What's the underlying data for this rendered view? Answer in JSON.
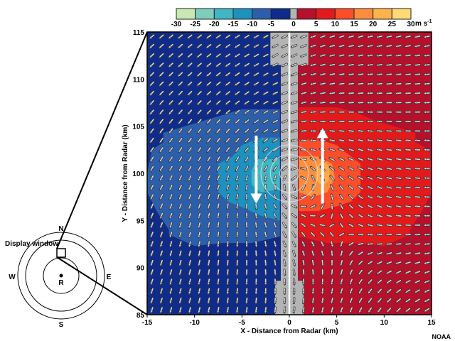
{
  "chart_data": {
    "type": "heatmap",
    "xlabel": "X - Distance from Radar (km)",
    "ylabel": "Y - Distance from Radar (km)",
    "xlim": [
      -15,
      15
    ],
    "ylim": [
      85,
      115
    ],
    "xticks": [
      "-15",
      "-10",
      "-5",
      "0",
      "5",
      "10",
      "15"
    ],
    "yticks": [
      "85",
      "90",
      "95",
      "100",
      "105",
      "110",
      "115"
    ],
    "colorbar": {
      "unit": "m s",
      "unit_exp": "-1",
      "ticks": [
        "-30",
        "-25",
        "-20",
        "-15",
        "-10",
        "-5",
        "0",
        "5",
        "10",
        "15",
        "20",
        "25",
        "30"
      ],
      "bins": [
        {
          "range": [
            -30,
            -25
          ],
          "color": "#c7e9b4"
        },
        {
          "range": [
            -25,
            -20
          ],
          "color": "#7fcdbb"
        },
        {
          "range": [
            -20,
            -15
          ],
          "color": "#41b6c4"
        },
        {
          "range": [
            -15,
            -10
          ],
          "color": "#1d91c0"
        },
        {
          "range": [
            -10,
            -5
          ],
          "color": "#2c5fab"
        },
        {
          "range": [
            -5,
            0
          ],
          "color": "#102c8a"
        },
        {
          "range": [
            0,
            0
          ],
          "color": "#b4b4b4"
        },
        {
          "range": [
            0,
            5
          ],
          "color": "#b5102c"
        },
        {
          "range": [
            5,
            10
          ],
          "color": "#e31a1c"
        },
        {
          "range": [
            10,
            15
          ],
          "color": "#fc4e2a"
        },
        {
          "range": [
            15,
            20
          ],
          "color": "#fd8d3c"
        },
        {
          "range": [
            20,
            25
          ],
          "color": "#feb24c"
        },
        {
          "range": [
            25,
            30
          ],
          "color": "#fed976"
        }
      ]
    },
    "field": "radial velocity with wind vectors around a counter-clockwise vortex centered near (0, 100) km",
    "vortex_center": [
      0,
      100
    ],
    "annotations": {
      "inbound_arrow": "down at x=-3.5",
      "outbound_arrow": "up at x=3.5"
    }
  },
  "inset": {
    "title": "Display window",
    "north": "N",
    "south": "S",
    "east": "E",
    "west": "W",
    "radar": "R"
  },
  "credit": "NOAA"
}
